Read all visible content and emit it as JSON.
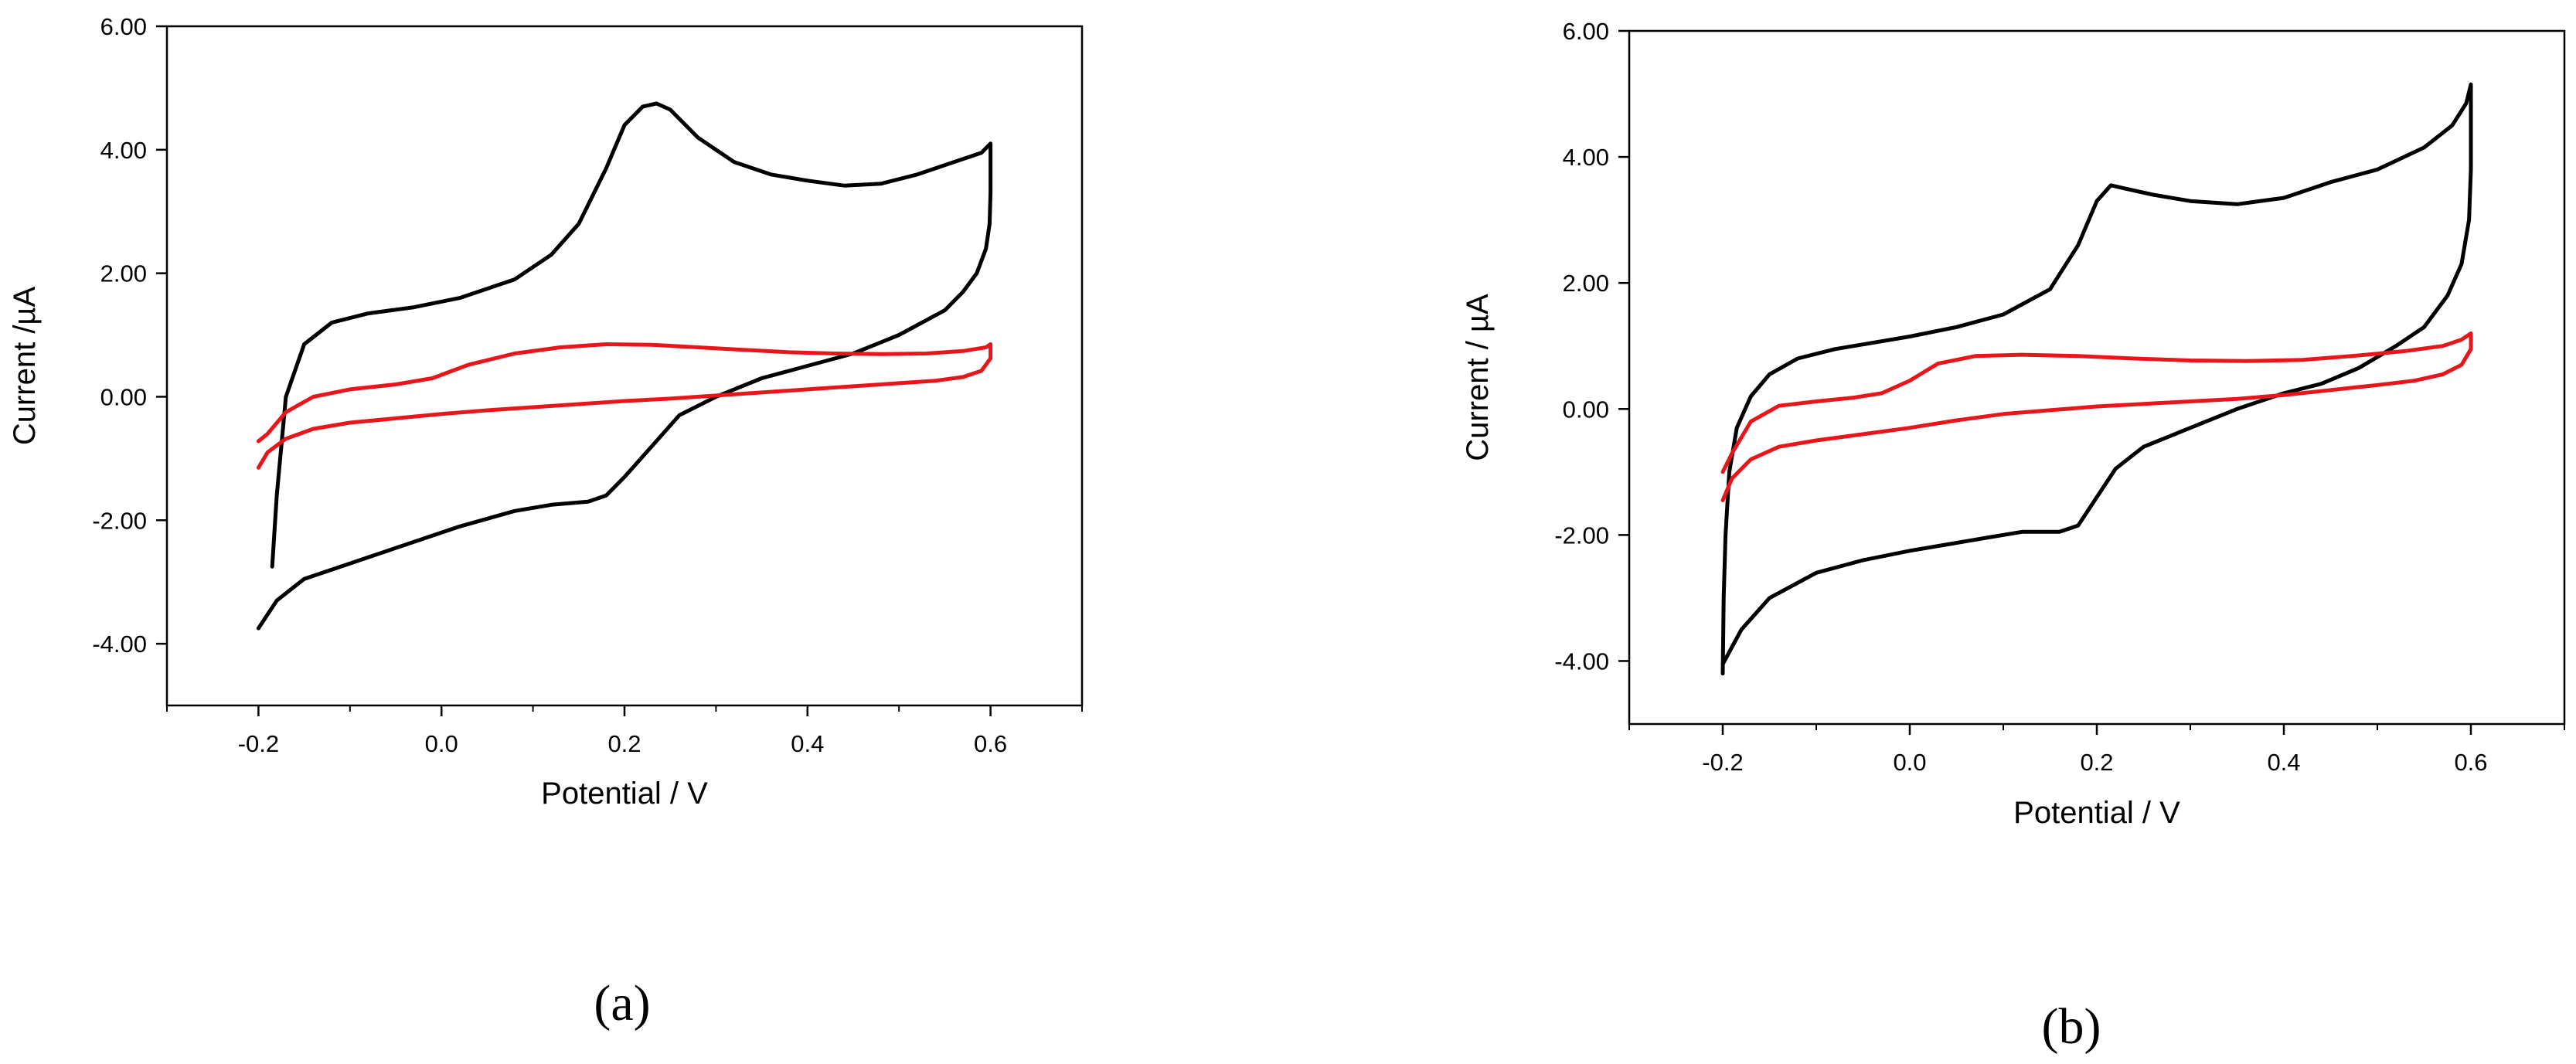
{
  "chart_data": [
    {
      "type": "line",
      "panel_label": "(a)",
      "xlabel": "Potential / V",
      "ylabel": "Current /µA",
      "xlim": [
        -0.3,
        0.7
      ],
      "ylim": [
        -5.0,
        6.0
      ],
      "xticks": [
        -0.2,
        0.0,
        0.2,
        0.4,
        0.6
      ],
      "xtick_labels": [
        "-0.2",
        "0.0",
        "0.2",
        "0.4",
        "0.6"
      ],
      "yticks": [
        -4.0,
        -2.0,
        0.0,
        2.0,
        4.0,
        6.0
      ],
      "ytick_labels": [
        "-4.00",
        "-2.00",
        "0.00",
        "2.00",
        "4.00",
        "6.00"
      ],
      "grid": false,
      "series": [
        {
          "color": "#000000",
          "x": [
            -0.185,
            -0.18,
            -0.17,
            -0.15,
            -0.12,
            -0.08,
            -0.03,
            0.02,
            0.08,
            0.12,
            0.15,
            0.18,
            0.2,
            0.22,
            0.235,
            0.25,
            0.28,
            0.32,
            0.36,
            0.4,
            0.44,
            0.48,
            0.52,
            0.56,
            0.59,
            0.6,
            0.6,
            0.599,
            0.595,
            0.585,
            0.57,
            0.55,
            0.5,
            0.45,
            0.4,
            0.35,
            0.3,
            0.26,
            0.23,
            0.2,
            0.18,
            0.16,
            0.12,
            0.08,
            0.02,
            -0.04,
            -0.1,
            -0.15,
            -0.18,
            -0.2
          ],
          "y": [
            -2.75,
            -1.6,
            0.0,
            0.85,
            1.2,
            1.35,
            1.45,
            1.6,
            1.9,
            2.3,
            2.8,
            3.7,
            4.4,
            4.7,
            4.75,
            4.65,
            4.2,
            3.8,
            3.6,
            3.5,
            3.42,
            3.45,
            3.6,
            3.8,
            3.95,
            4.1,
            3.3,
            2.8,
            2.4,
            2.0,
            1.7,
            1.4,
            1.0,
            0.7,
            0.5,
            0.3,
            0.0,
            -0.3,
            -0.8,
            -1.3,
            -1.6,
            -1.7,
            -1.75,
            -1.85,
            -2.1,
            -2.4,
            -2.7,
            -2.95,
            -3.3,
            -3.75
          ]
        },
        {
          "color": "#e8161b",
          "x": [
            -0.2,
            -0.19,
            -0.17,
            -0.14,
            -0.1,
            -0.05,
            -0.01,
            0.03,
            0.08,
            0.13,
            0.18,
            0.23,
            0.28,
            0.33,
            0.38,
            0.43,
            0.48,
            0.53,
            0.57,
            0.595,
            0.6,
            0.6,
            0.59,
            0.57,
            0.54,
            0.5,
            0.45,
            0.4,
            0.35,
            0.3,
            0.25,
            0.2,
            0.15,
            0.1,
            0.05,
            0.0,
            -0.05,
            -0.1,
            -0.14,
            -0.17,
            -0.19,
            -0.2
          ],
          "y": [
            -0.72,
            -0.6,
            -0.25,
            0.0,
            0.12,
            0.2,
            0.3,
            0.52,
            0.7,
            0.8,
            0.85,
            0.84,
            0.8,
            0.76,
            0.72,
            0.7,
            0.69,
            0.7,
            0.74,
            0.8,
            0.85,
            0.62,
            0.42,
            0.32,
            0.26,
            0.22,
            0.17,
            0.12,
            0.07,
            0.02,
            -0.03,
            -0.07,
            -0.12,
            -0.17,
            -0.22,
            -0.28,
            -0.35,
            -0.42,
            -0.52,
            -0.68,
            -0.9,
            -1.15
          ]
        }
      ]
    },
    {
      "type": "line",
      "panel_label": "(b)",
      "xlabel": "Potential / V",
      "ylabel": "Current / µA",
      "xlim": [
        -0.3,
        0.7
      ],
      "ylim": [
        -5.0,
        6.0
      ],
      "xticks": [
        -0.2,
        0.0,
        0.2,
        0.4,
        0.6
      ],
      "xtick_labels": [
        "-0.2",
        "0.0",
        "0.2",
        "0.4",
        "0.6"
      ],
      "yticks": [
        -4.0,
        -2.0,
        0.0,
        2.0,
        4.0,
        6.0
      ],
      "ytick_labels": [
        "-4.00",
        "-2.00",
        "0.00",
        "2.00",
        "4.00",
        "6.00"
      ],
      "grid": false,
      "series": [
        {
          "color": "#000000",
          "x": [
            -0.2,
            -0.199,
            -0.197,
            -0.193,
            -0.185,
            -0.17,
            -0.15,
            -0.12,
            -0.08,
            -0.04,
            0.0,
            0.05,
            0.1,
            0.15,
            0.18,
            0.2,
            0.215,
            0.23,
            0.26,
            0.3,
            0.35,
            0.4,
            0.45,
            0.5,
            0.55,
            0.58,
            0.595,
            0.6,
            0.6,
            0.598,
            0.59,
            0.575,
            0.55,
            0.52,
            0.48,
            0.44,
            0.4,
            0.35,
            0.3,
            0.25,
            0.22,
            0.2,
            0.18,
            0.16,
            0.12,
            0.08,
            0.04,
            0.0,
            -0.05,
            -0.1,
            -0.15,
            -0.18,
            -0.2
          ],
          "y": [
            -4.2,
            -3.0,
            -2.0,
            -1.0,
            -0.3,
            0.2,
            0.55,
            0.8,
            0.95,
            1.05,
            1.15,
            1.3,
            1.5,
            1.9,
            2.6,
            3.3,
            3.55,
            3.5,
            3.4,
            3.3,
            3.25,
            3.35,
            3.6,
            3.8,
            4.15,
            4.5,
            4.85,
            5.15,
            3.8,
            3.0,
            2.3,
            1.8,
            1.3,
            1.0,
            0.65,
            0.4,
            0.25,
            0.0,
            -0.3,
            -0.6,
            -0.95,
            -1.4,
            -1.85,
            -1.95,
            -1.95,
            -2.05,
            -2.15,
            -2.25,
            -2.4,
            -2.6,
            -3.0,
            -3.5,
            -4.05
          ]
        },
        {
          "color": "#e8161b",
          "x": [
            -0.2,
            -0.19,
            -0.17,
            -0.14,
            -0.1,
            -0.06,
            -0.03,
            0.0,
            0.03,
            0.07,
            0.12,
            0.18,
            0.24,
            0.3,
            0.36,
            0.42,
            0.48,
            0.53,
            0.57,
            0.59,
            0.6,
            0.6,
            0.59,
            0.57,
            0.54,
            0.5,
            0.45,
            0.4,
            0.35,
            0.3,
            0.25,
            0.2,
            0.15,
            0.1,
            0.05,
            0.0,
            -0.05,
            -0.1,
            -0.14,
            -0.17,
            -0.19,
            -0.2
          ],
          "y": [
            -1.0,
            -0.7,
            -0.2,
            0.05,
            0.12,
            0.18,
            0.25,
            0.45,
            0.72,
            0.84,
            0.86,
            0.84,
            0.8,
            0.77,
            0.76,
            0.78,
            0.85,
            0.92,
            1.0,
            1.1,
            1.2,
            0.95,
            0.7,
            0.55,
            0.45,
            0.38,
            0.3,
            0.22,
            0.16,
            0.12,
            0.08,
            0.04,
            -0.02,
            -0.08,
            -0.18,
            -0.3,
            -0.4,
            -0.5,
            -0.6,
            -0.8,
            -1.1,
            -1.45
          ]
        }
      ]
    }
  ]
}
